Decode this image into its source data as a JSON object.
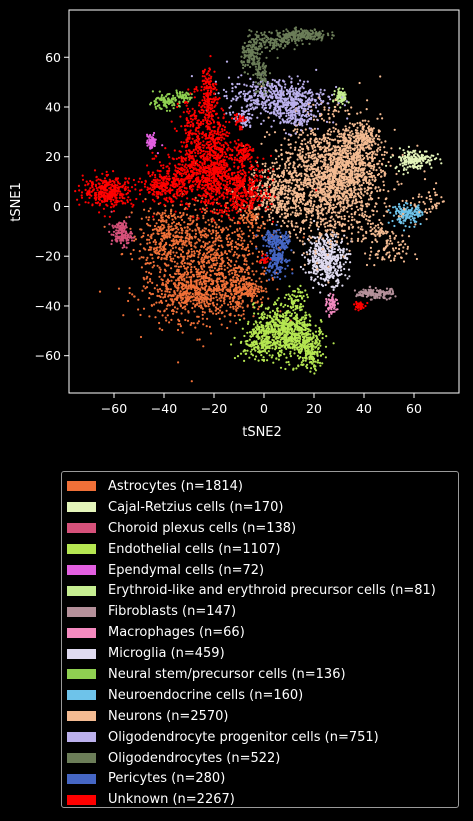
{
  "chart_data": {
    "type": "scatter",
    "xlabel": "tSNE2",
    "ylabel": "tSNE1",
    "xlim": [
      -78,
      78
    ],
    "ylim": [
      -75,
      79
    ],
    "xticks": [
      -60,
      -40,
      -20,
      0,
      20,
      40,
      60
    ],
    "yticks": [
      -60,
      -40,
      -20,
      0,
      20,
      40,
      60
    ],
    "legend_position": "below",
    "series": [
      {
        "name": "Astrocytes (n=1814)",
        "color": "#f07038",
        "clusters": [
          [
            -22,
            -22,
            12,
            12,
            900
          ],
          [
            -28,
            -35,
            10,
            5,
            450
          ],
          [
            -40,
            -12,
            5,
            6,
            250
          ],
          [
            -8,
            -33,
            4,
            3,
            150
          ],
          [
            -5,
            -5,
            3,
            3,
            64
          ]
        ]
      },
      {
        "name": "Cajal-Retzius cells (n=170)",
        "color": "#e4f5ba",
        "clusters": [
          [
            60,
            19,
            4,
            2,
            170
          ]
        ]
      },
      {
        "name": "Choroid plexus cells (n=138)",
        "color": "#d6517a",
        "clusters": [
          [
            -57,
            -11,
            2,
            2.5,
            138
          ]
        ]
      },
      {
        "name": "Endothelial cells (n=1107)",
        "color": "#b5e651",
        "clusters": [
          [
            8,
            -50,
            6,
            5,
            700
          ],
          [
            18,
            -58,
            3,
            4,
            200
          ],
          [
            -2,
            -55,
            4,
            3,
            150
          ],
          [
            13,
            -38,
            2,
            3,
            57
          ]
        ]
      },
      {
        "name": "Ependymal cells (n=72)",
        "color": "#e35fe0",
        "clusters": [
          [
            -45,
            26,
            1,
            1.5,
            72
          ]
        ]
      },
      {
        "name": "Erythroid-like and erythroid precursor cells (n=81)",
        "color": "#c6ee91",
        "clusters": [
          [
            31,
            44,
            1.2,
            1.5,
            81
          ]
        ]
      },
      {
        "name": "Fibroblasts (n=147)",
        "color": "#b5909a",
        "clusters": [
          [
            42,
            -35,
            2.5,
            1,
            90
          ],
          [
            48,
            -35,
            2,
            1,
            57
          ]
        ]
      },
      {
        "name": "Macrophages (n=66)",
        "color": "#f58ac0",
        "clusters": [
          [
            27,
            -40,
            1,
            2,
            66
          ]
        ]
      },
      {
        "name": "Microglia (n=459)",
        "color": "#e0dbf0",
        "clusters": [
          [
            25,
            -21,
            4,
            5,
            459
          ]
        ]
      },
      {
        "name": "Neural stem/precursor cells (n=136)",
        "color": "#8fd051",
        "clusters": [
          [
            -40,
            42,
            3,
            1.5,
            90
          ],
          [
            -33,
            44,
            2,
            1,
            46
          ]
        ]
      },
      {
        "name": "Neuroendocrine cells (n=160)",
        "color": "#6ec3ea",
        "clusters": [
          [
            57,
            -3,
            3,
            2,
            140
          ],
          [
            62,
            -3,
            1,
            1,
            20
          ]
        ]
      },
      {
        "name": "Neurons (n=2570)",
        "color": "#f4bb92",
        "clusters": [
          [
            25,
            10,
            11,
            12,
            1500
          ],
          [
            35,
            18,
            6,
            8,
            500
          ],
          [
            5,
            5,
            6,
            5,
            300
          ],
          [
            40,
            27,
            3,
            3,
            100
          ],
          [
            50,
            -18,
            4,
            3,
            70
          ],
          [
            45,
            -10,
            3,
            2,
            50
          ],
          [
            62,
            0,
            4,
            3,
            30
          ],
          [
            68,
            3,
            2,
            3,
            20
          ]
        ]
      },
      {
        "name": "Oligodendrocyte progenitor cells (n=751)",
        "color": "#bbb0ec",
        "clusters": [
          [
            5,
            44,
            10,
            4,
            500
          ],
          [
            12,
            38,
            4,
            4,
            200
          ],
          [
            -8,
            35,
            1.5,
            1.5,
            51
          ]
        ]
      },
      {
        "name": "Oligodendrocytes (n=522)",
        "color": "#6b7d58",
        "clusters": [
          [
            15,
            69,
            5,
            1.2,
            200
          ],
          [
            3,
            66,
            4,
            2,
            120
          ],
          [
            -5,
            61,
            2,
            3,
            130
          ],
          [
            -1,
            52,
            1.5,
            4,
            72
          ]
        ]
      },
      {
        "name": "Pericytes (n=280)",
        "color": "#4566c4",
        "clusters": [
          [
            5,
            -20,
            2,
            4,
            160
          ],
          [
            3,
            -13,
            2.5,
            2,
            70
          ],
          [
            8,
            -15,
            1,
            2,
            50
          ]
        ]
      },
      {
        "name": "Unknown (n=2267)",
        "color": "#ff0000",
        "clusters": [
          [
            -22,
            12,
            10,
            6,
            700
          ],
          [
            -20,
            22,
            3,
            10,
            300
          ],
          [
            -62,
            6,
            5,
            3,
            350
          ],
          [
            -40,
            8,
            4,
            3,
            200
          ],
          [
            -28,
            28,
            3,
            8,
            200
          ],
          [
            -22,
            45,
            1.5,
            6,
            150
          ],
          [
            -8,
            5,
            5,
            4,
            200
          ],
          [
            -8,
            22,
            2,
            2,
            77
          ],
          [
            -10,
            35,
            1,
            2,
            30
          ],
          [
            0,
            -21,
            1,
            1,
            20
          ],
          [
            38,
            -40,
            1,
            1,
            40
          ]
        ]
      }
    ]
  }
}
